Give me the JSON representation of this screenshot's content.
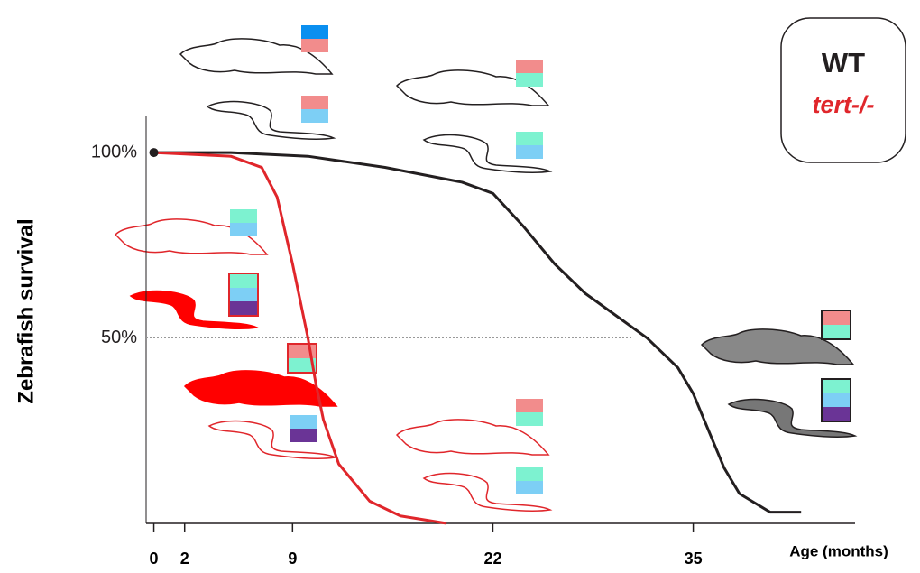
{
  "chart_data": {
    "type": "line",
    "x_label": "Age (months)",
    "y_label": "Zebrafish survival",
    "xlim": [
      -0.5,
      45.5
    ],
    "xticks": [
      0,
      2,
      9,
      22,
      35
    ],
    "ylim": [
      0,
      110
    ],
    "yticks": [
      {
        "value": 100,
        "label": "100%"
      },
      {
        "value": 50,
        "label": "50%"
      }
    ],
    "hlines": [
      50
    ],
    "legend": "top-right",
    "series": [
      {
        "name": "WT",
        "color": "#231f20",
        "x": [
          0,
          5,
          10,
          15,
          20,
          22,
          24,
          26,
          28,
          30,
          32,
          34,
          35,
          36,
          37,
          38,
          40,
          42
        ],
        "values": [
          100,
          100,
          99,
          96,
          92,
          89,
          80,
          70,
          62,
          56,
          50,
          42,
          35,
          25,
          15,
          8,
          3,
          3
        ]
      },
      {
        "name": "tert-/-",
        "color": "#e0262b",
        "x": [
          0,
          5,
          7,
          8,
          9,
          9.5,
          10,
          10.5,
          11,
          12,
          14,
          16,
          19
        ],
        "values": [
          100,
          99,
          96,
          88,
          70,
          60,
          50,
          38,
          28,
          16,
          6,
          2,
          0
        ]
      }
    ]
  }
}
